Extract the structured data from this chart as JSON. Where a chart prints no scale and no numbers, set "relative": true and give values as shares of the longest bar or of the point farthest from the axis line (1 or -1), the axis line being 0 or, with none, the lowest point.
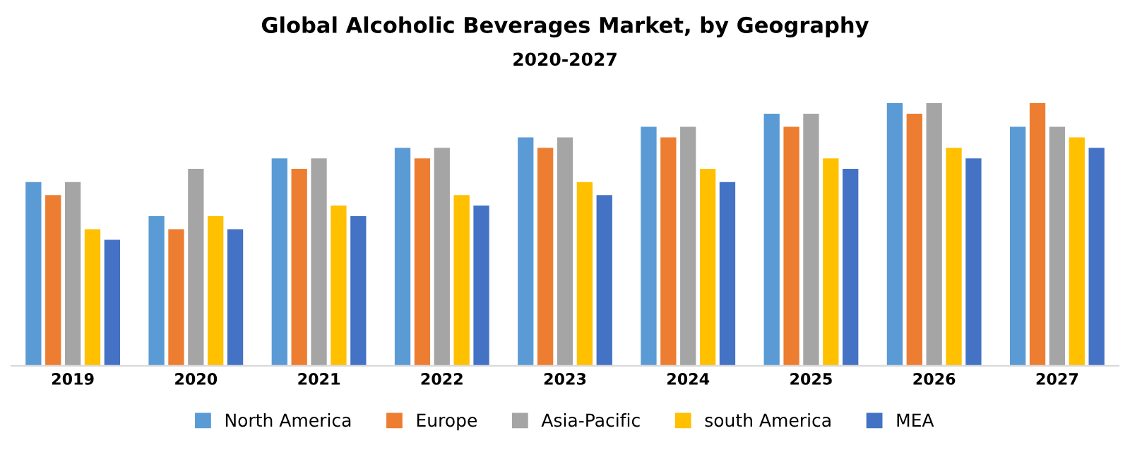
{
  "chart_data": {
    "type": "bar",
    "title": "Global Alcoholic Beverages Market, by Geography",
    "subtitle": "2020-2027",
    "relative": true,
    "legend": "bottom",
    "grid": false,
    "categories": [
      "2019",
      "2020",
      "2021",
      "2022",
      "2023",
      "2024",
      "2025",
      "2026",
      "2027"
    ],
    "series": [
      {
        "name": "North America",
        "color": "#5b9bd5",
        "values": [
          0.7,
          0.57,
          0.79,
          0.83,
          0.87,
          0.91,
          0.96,
          1.0,
          0.91
        ]
      },
      {
        "name": "Europe",
        "color": "#ed7d31",
        "values": [
          0.65,
          0.52,
          0.75,
          0.79,
          0.83,
          0.87,
          0.91,
          0.96,
          1.0
        ]
      },
      {
        "name": "Asia-Pacific",
        "color": "#a5a5a5",
        "values": [
          0.7,
          0.75,
          0.79,
          0.83,
          0.87,
          0.91,
          0.96,
          1.0,
          0.91
        ]
      },
      {
        "name": "south America",
        "color": "#ffc000",
        "values": [
          0.52,
          0.57,
          0.61,
          0.65,
          0.7,
          0.75,
          0.79,
          0.83,
          0.87
        ]
      },
      {
        "name": "MEA",
        "color": "#4472c4",
        "values": [
          0.48,
          0.52,
          0.57,
          0.61,
          0.65,
          0.7,
          0.75,
          0.79,
          0.83
        ]
      }
    ]
  }
}
